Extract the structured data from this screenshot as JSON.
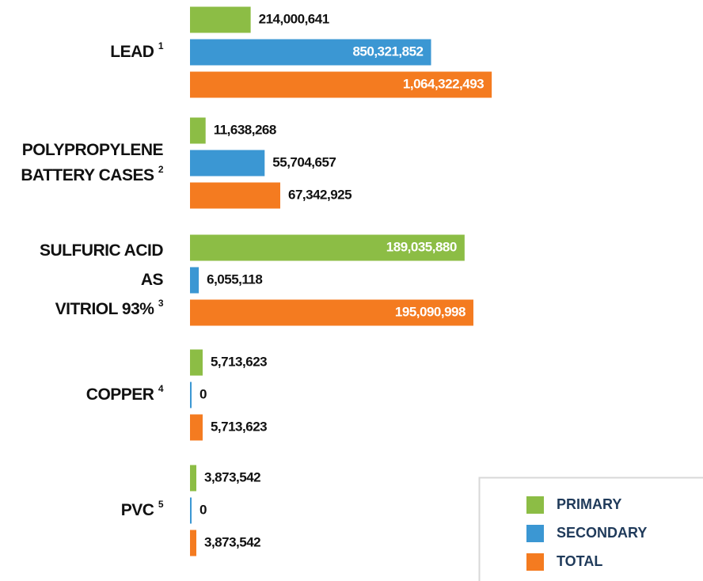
{
  "chart_data": [
    {
      "type": "bar",
      "orientation": "horizontal",
      "title_lines": [
        "LEAD"
      ],
      "footnote": "1",
      "values": [
        214000641,
        850321852,
        1064322493
      ],
      "value_labels": [
        "214,000,641",
        "850,321,852",
        "1,064,322,493"
      ],
      "xlim": [
        0,
        1117000000
      ]
    },
    {
      "type": "bar",
      "orientation": "horizontal",
      "title_lines": [
        "POLYPROPYLENE",
        "BATTERY CASES"
      ],
      "footnote": "2",
      "values": [
        11638268,
        55704657,
        67342925
      ],
      "value_labels": [
        "11,638,268",
        "55,704,657",
        "67,342,925"
      ],
      "xlim": [
        0,
        236300000
      ]
    },
    {
      "type": "bar",
      "orientation": "horizontal",
      "title_lines": [
        "SULFURIC ACID",
        "AS",
        "VITRIOL 93%"
      ],
      "footnote": "3",
      "values": [
        189035880,
        6055118,
        195090998
      ],
      "value_labels": [
        "189,035,880",
        "6,055,118",
        "195,090,998"
      ],
      "xlim": [
        0,
        218000000
      ]
    },
    {
      "type": "bar",
      "orientation": "horizontal",
      "title_lines": [
        "COPPER"
      ],
      "footnote": "4",
      "values": [
        5713623,
        0,
        5713623
      ],
      "value_labels": [
        "5,713,623",
        "0",
        "5,713,623"
      ],
      "xlim": [
        0,
        143000000
      ]
    },
    {
      "type": "bar",
      "orientation": "horizontal",
      "title_lines": [
        "PVC"
      ],
      "footnote": "5",
      "values": [
        3873542,
        0,
        3873542
      ],
      "value_labels": [
        "3,873,542",
        "0",
        "3,873,542"
      ],
      "xlim": [
        0,
        193700000
      ]
    }
  ],
  "legend": [
    {
      "name": "PRIMARY",
      "color": "#8cbd45"
    },
    {
      "name": "SECONDARY",
      "color": "#3b97d3"
    },
    {
      "name": "TOTAL",
      "color": "#f47b20"
    }
  ]
}
